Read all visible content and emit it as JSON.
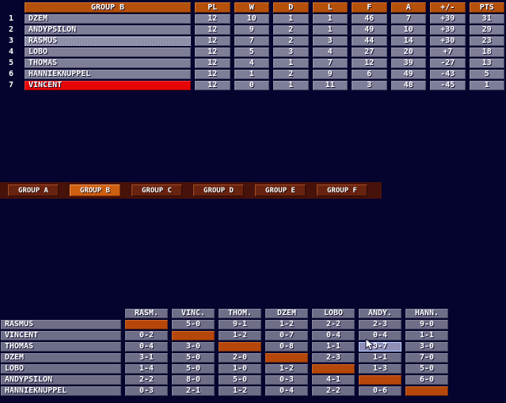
{
  "colors": {
    "background": "#04042e",
    "header_orange": "#b5500a",
    "row_gray": "#7e7e98",
    "result_gray": "#6e6e88",
    "accent_red": "#e60505",
    "diagonal_orange": "#b5470a",
    "tab_strip": "#46120a",
    "tab_inactive": "#682310",
    "tab_active": "#cd5f11",
    "hover_border": "#bcd0ff"
  },
  "standings": {
    "title": "GROUP B",
    "columns": [
      "PL",
      "W",
      "D",
      "L",
      "F",
      "A",
      "+/-",
      "PTS"
    ],
    "rows": [
      {
        "rank": "1",
        "team": "DZEM",
        "vals": [
          "12",
          "10",
          "1",
          "1",
          "46",
          "7",
          "+39",
          "31"
        ]
      },
      {
        "rank": "2",
        "team": "ANDYPSILON",
        "vals": [
          "12",
          "9",
          "2",
          "1",
          "49",
          "10",
          "+39",
          "29"
        ]
      },
      {
        "rank": "3",
        "team": "RASMUS",
        "vals": [
          "12",
          "7",
          "2",
          "3",
          "44",
          "14",
          "+30",
          "23"
        ],
        "selected": true
      },
      {
        "rank": "4",
        "team": "LOBO",
        "vals": [
          "12",
          "5",
          "3",
          "4",
          "27",
          "20",
          "+7",
          "18"
        ]
      },
      {
        "rank": "5",
        "team": "THOMAS",
        "vals": [
          "12",
          "4",
          "1",
          "7",
          "12",
          "39",
          "-27",
          "13"
        ]
      },
      {
        "rank": "6",
        "team": "HANNIEKNUPPEL",
        "vals": [
          "12",
          "1",
          "2",
          "9",
          "6",
          "49",
          "-43",
          "5"
        ]
      },
      {
        "rank": "7",
        "team": "VINCENT",
        "vals": [
          "12",
          "0",
          "1",
          "11",
          "3",
          "48",
          "-45",
          "1"
        ],
        "highlight": "red"
      }
    ]
  },
  "tabs": [
    {
      "label": "GROUP A",
      "active": false
    },
    {
      "label": "GROUP B",
      "active": true
    },
    {
      "label": "GROUP C",
      "active": false
    },
    {
      "label": "GROUP D",
      "active": false
    },
    {
      "label": "GROUP E",
      "active": false
    },
    {
      "label": "GROUP F",
      "active": false
    }
  ],
  "results": {
    "columns": [
      "RASM.",
      "VINC.",
      "THOM.",
      "DZEM",
      "LOBO",
      "ANDY.",
      "HANN."
    ],
    "rows": [
      {
        "team": "RASMUS",
        "cells": [
          "",
          "5-0",
          "9-1",
          "1-2",
          "2-2",
          "2-3",
          "9-0"
        ]
      },
      {
        "team": "VINCENT",
        "cells": [
          "0-2",
          "",
          "1-2",
          "0-7",
          "0-4",
          "0-4",
          "1-1"
        ]
      },
      {
        "team": "THOMAS",
        "cells": [
          "0-4",
          "3-0",
          "",
          "0-8",
          "1-1",
          "0-7",
          "3-0"
        ]
      },
      {
        "team": "DZEM",
        "cells": [
          "3-1",
          "5-0",
          "2-0",
          "",
          "2-3",
          "1-1",
          "7-0"
        ]
      },
      {
        "team": "LOBO",
        "cells": [
          "1-4",
          "5-0",
          "1-0",
          "1-2",
          "",
          "1-3",
          "5-0"
        ]
      },
      {
        "team": "ANDYPSILON",
        "cells": [
          "2-2",
          "8-0",
          "5-0",
          "0-3",
          "4-1",
          "",
          "6-0"
        ]
      },
      {
        "team": "HANNIEKNUPPEL",
        "cells": [
          "0-3",
          "2-1",
          "1-2",
          "0-4",
          "2-2",
          "0-6",
          ""
        ]
      }
    ],
    "highlight": {
      "row": 2,
      "col": 5
    }
  }
}
